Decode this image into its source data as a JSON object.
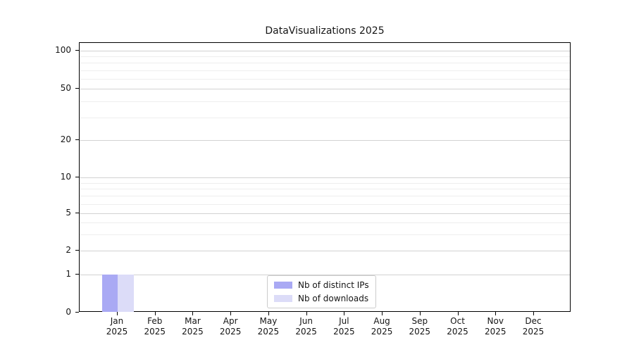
{
  "chart_data": {
    "type": "bar",
    "title": "DataVisualizations 2025",
    "x_axis": {
      "months": [
        "Jan",
        "Feb",
        "Mar",
        "Apr",
        "May",
        "Jun",
        "Jul",
        "Aug",
        "Sep",
        "Oct",
        "Nov",
        "Dec"
      ],
      "year": "2025"
    },
    "y_axis": {
      "scale": "symlog",
      "ticks": [
        0,
        1,
        2,
        5,
        10,
        20,
        50,
        100
      ],
      "minor_gridline_values": [
        3,
        4,
        6,
        7,
        8,
        9,
        30,
        40,
        60,
        70,
        80,
        90
      ]
    },
    "series": [
      {
        "name": "Nb of distinct IPs",
        "color": "#a9a9f4",
        "values": [
          1,
          0,
          0,
          0,
          0,
          0,
          0,
          0,
          0,
          0,
          0,
          0
        ]
      },
      {
        "name": "Nb of downloads",
        "color": "#dcdcf8",
        "values": [
          1,
          0,
          0,
          0,
          0,
          0,
          0,
          0,
          0,
          0,
          0,
          0
        ]
      }
    ],
    "legend_position": "lower center",
    "grid": {
      "horizontal": true,
      "vertical": false
    }
  },
  "colors": {
    "major_grid": "#d2d2d2",
    "minor_grid": "#eeeeee",
    "spine": "#000000",
    "text": "#151515",
    "legend_border": "#cccccc",
    "background": "#ffffff"
  }
}
